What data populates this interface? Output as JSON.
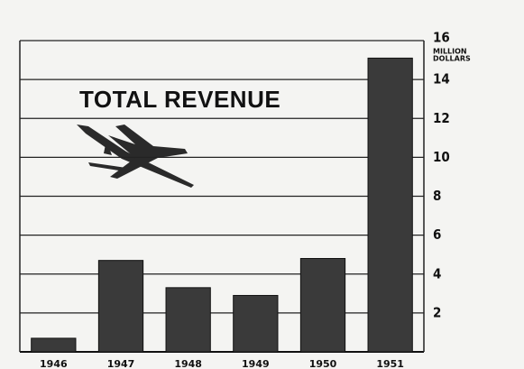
{
  "chart_data": {
    "type": "bar",
    "title": "TOTAL REVENUE",
    "y_label": [
      "MILLION",
      "DOLLARS"
    ],
    "categories": [
      "1946",
      "1947",
      "1948",
      "1949",
      "1950",
      "1951"
    ],
    "values": [
      0.7,
      4.7,
      3.3,
      2.9,
      4.8,
      15.1
    ],
    "color": "#3a3a3a",
    "ylim": [
      0,
      16
    ],
    "yticks": [
      2,
      4,
      6,
      8,
      10,
      12,
      14,
      16
    ],
    "grid": true
  }
}
